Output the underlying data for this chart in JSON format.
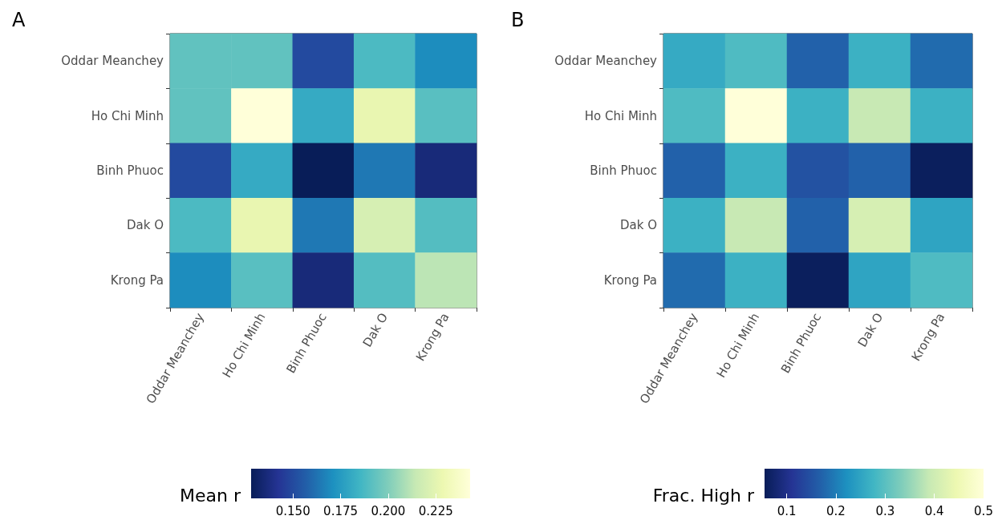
{
  "chart_data": [
    {
      "type": "heatmap",
      "title": "A",
      "clabel": "Mean r",
      "categories": [
        "Oddar Meanchey",
        "Ho Chi Minh",
        "Binh Phuoc",
        "Dak O",
        "Krong Pa"
      ],
      "y_categories": [
        "Oddar Meanchey",
        "Ho Chi Minh",
        "Binh Phuoc",
        "Dak O",
        "Krong Pa"
      ],
      "cells": [
        [
          0.193,
          0.193,
          0.15,
          0.188,
          0.17
        ],
        [
          0.193,
          0.243,
          0.181,
          0.227,
          0.191
        ],
        [
          0.15,
          0.181,
          0.128,
          0.164,
          0.136
        ],
        [
          0.188,
          0.227,
          0.164,
          0.22,
          0.19
        ],
        [
          0.17,
          0.191,
          0.136,
          0.19,
          0.212
        ]
      ],
      "clim": [
        0.128,
        0.243
      ],
      "cticks": [
        {
          "value": 0.15,
          "label": "0.150"
        },
        {
          "value": 0.175,
          "label": "0.175"
        },
        {
          "value": 0.2,
          "label": "0.200"
        },
        {
          "value": 0.225,
          "label": "0.225"
        }
      ]
    },
    {
      "type": "heatmap",
      "title": "B",
      "clabel": "Frac. High r",
      "categories": [
        "Oddar Meanchey",
        "Ho Chi Minh",
        "Binh Phuoc",
        "Dak O",
        "Krong Pa"
      ],
      "y_categories": [
        "Oddar Meanchey",
        "Ho Chi Minh",
        "Binh Phuoc",
        "Dak O",
        "Krong Pa"
      ],
      "cells": [
        [
          0.26,
          0.29,
          0.17,
          0.27,
          0.18
        ],
        [
          0.29,
          0.5,
          0.27,
          0.39,
          0.27
        ],
        [
          0.17,
          0.27,
          0.15,
          0.17,
          0.06
        ],
        [
          0.27,
          0.39,
          0.17,
          0.41,
          0.25
        ],
        [
          0.18,
          0.27,
          0.06,
          0.25,
          0.29
        ]
      ],
      "clim": [
        0.055,
        0.5
      ],
      "cticks": [
        0.1,
        0.2,
        0.3,
        0.4,
        0.5
      ]
    }
  ]
}
